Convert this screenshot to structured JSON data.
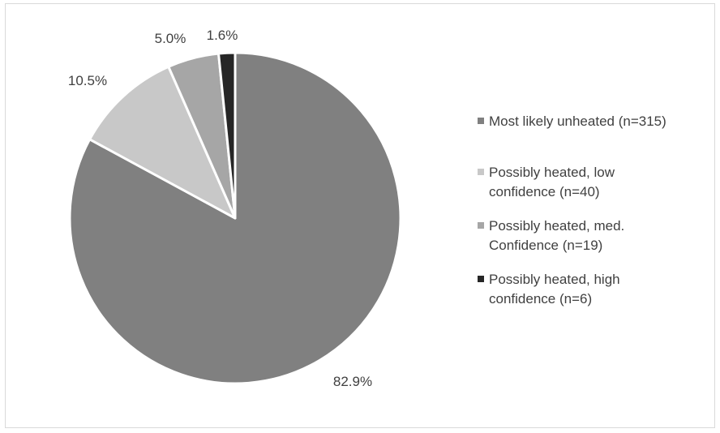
{
  "chart_data": {
    "type": "pie",
    "title": "",
    "slices": [
      {
        "label": "Most likely unheated (n=315)",
        "value": 82.9,
        "data_label": "82.9%",
        "color": "#808080"
      },
      {
        "label": "Possibly heated, low confidence (n=40)",
        "value": 10.5,
        "data_label": "10.5%",
        "color": "#c8c8c8"
      },
      {
        "label": "Possibly heated, med. Confidence (n=19)",
        "value": 5.0,
        "data_label": "5.0%",
        "color": "#a6a6a6"
      },
      {
        "label": "Possibly heated, high confidence (n=6)",
        "value": 1.6,
        "data_label": "1.6%",
        "color": "#262626"
      }
    ],
    "legend": {
      "placement": "right",
      "entries": [
        {
          "lines": [
            "Most likely unheated (n=315)"
          ],
          "color": "#808080"
        },
        {
          "lines": [
            "Possibly heated, low",
            "confidence (n=40)"
          ],
          "color": "#c8c8c8"
        },
        {
          "lines": [
            "Possibly heated, med.",
            "Confidence (n=19)"
          ],
          "color": "#a6a6a6"
        },
        {
          "lines": [
            "Possibly heated, high",
            "confidence (n=6)"
          ],
          "color": "#262626"
        }
      ]
    },
    "start_angle": "12 o'clock",
    "direction": "clockwise",
    "slice_separator_color": "#ffffff"
  }
}
